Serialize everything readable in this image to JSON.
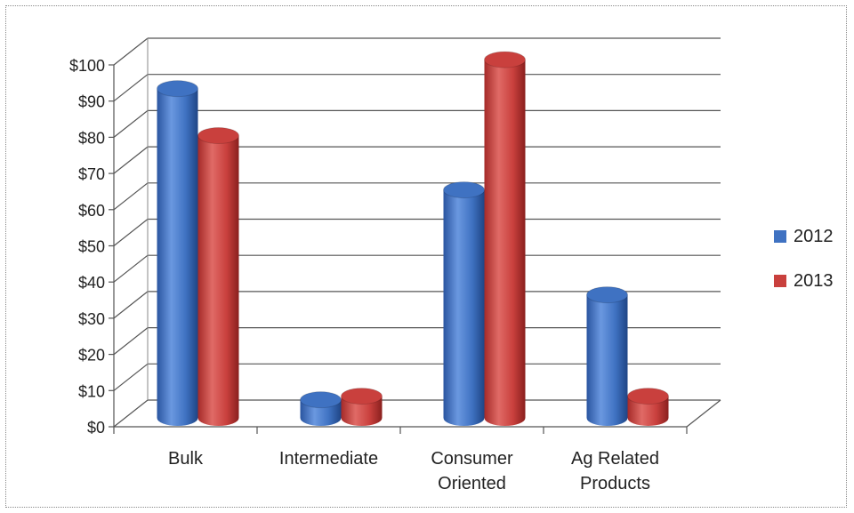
{
  "chart_data": {
    "type": "bar",
    "title": "",
    "xlabel": "",
    "ylabel": "",
    "categories": [
      [
        "Bulk"
      ],
      [
        "Intermediate"
      ],
      [
        "Consumer",
        "Oriented"
      ],
      [
        "Ag Related",
        "Products"
      ]
    ],
    "series": [
      {
        "name": "2012",
        "color": "#3f72c2",
        "values": [
          91,
          5,
          63,
          34
        ]
      },
      {
        "name": "2013",
        "color": "#c9403d",
        "values": [
          78,
          6,
          99,
          6
        ]
      }
    ],
    "yticks": [
      "$0",
      "$10",
      "$20",
      "$30",
      "$40",
      "$50",
      "$60",
      "$70",
      "$80",
      "$90",
      "$100"
    ],
    "ylim": [
      0,
      100
    ],
    "grid": true,
    "legend": "right",
    "style": "3d-cylinder"
  }
}
